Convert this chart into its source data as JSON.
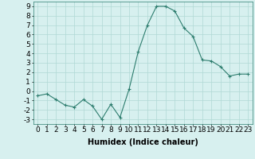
{
  "x": [
    0,
    1,
    2,
    3,
    4,
    5,
    6,
    7,
    8,
    9,
    10,
    11,
    12,
    13,
    14,
    15,
    16,
    17,
    18,
    19,
    20,
    21,
    22,
    23
  ],
  "y": [
    -0.5,
    -0.3,
    -0.9,
    -1.5,
    -1.7,
    -0.9,
    -1.6,
    -3.0,
    -1.4,
    -2.8,
    0.2,
    4.2,
    7.0,
    9.0,
    9.0,
    8.5,
    6.7,
    5.8,
    3.3,
    3.2,
    2.6,
    1.6,
    1.8,
    1.8
  ],
  "line_color": "#2d7d6e",
  "marker": "+",
  "bg_color": "#d7f0ef",
  "grid_color": "#b0d8d5",
  "xlabel": "Humidex (Indice chaleur)",
  "xlim": [
    -0.5,
    23.5
  ],
  "ylim": [
    -3.5,
    9.5
  ],
  "yticks": [
    -3,
    -2,
    -1,
    0,
    1,
    2,
    3,
    4,
    5,
    6,
    7,
    8,
    9
  ],
  "xticks": [
    0,
    1,
    2,
    3,
    4,
    5,
    6,
    7,
    8,
    9,
    10,
    11,
    12,
    13,
    14,
    15,
    16,
    17,
    18,
    19,
    20,
    21,
    22,
    23
  ],
  "xlabel_fontsize": 7,
  "tick_fontsize": 6.5
}
